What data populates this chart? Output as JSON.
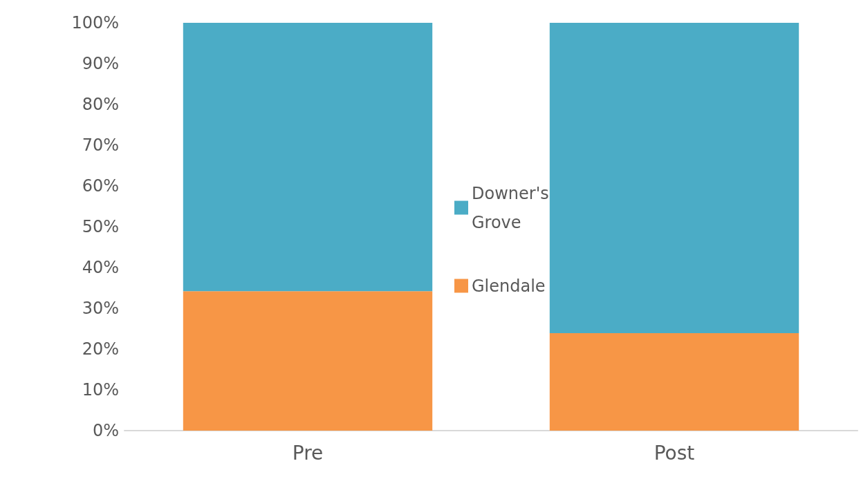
{
  "chart_data": {
    "type": "bar",
    "stacked": true,
    "categories": [
      "Pre",
      "Post"
    ],
    "series": [
      {
        "name": "Glendale",
        "color": "#f79646",
        "values": [
          34.2,
          23.9
        ]
      },
      {
        "name": "Downer's Grove",
        "color": "#4bacc6",
        "values": [
          65.8,
          76.1
        ]
      }
    ],
    "ylim": [
      0,
      100
    ],
    "yticks": [
      {
        "value": 0,
        "label": "0%"
      },
      {
        "value": 10,
        "label": "10%"
      },
      {
        "value": 20,
        "label": "20%"
      },
      {
        "value": 30,
        "label": "30%"
      },
      {
        "value": 40,
        "label": "40%"
      },
      {
        "value": 50,
        "label": "50%"
      },
      {
        "value": 60,
        "label": "60%"
      },
      {
        "value": 70,
        "label": "70%"
      },
      {
        "value": 80,
        "label": "80%"
      },
      {
        "value": 90,
        "label": "90%"
      },
      {
        "value": 100,
        "label": "100%"
      }
    ],
    "grid": false,
    "legend": "center"
  }
}
